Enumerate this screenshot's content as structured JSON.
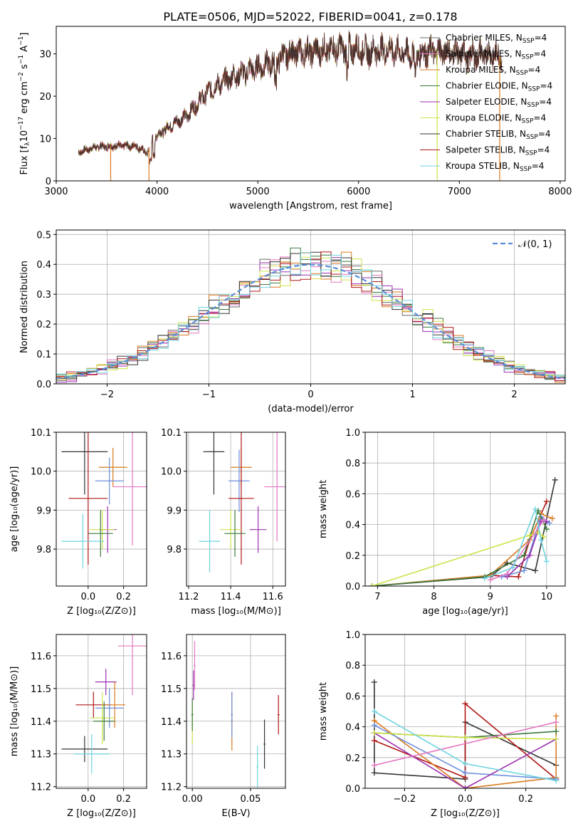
{
  "figure_title": "PLATE=0506, MJD=52022, FIBERID=0041, z=0.178",
  "series_colors": [
    "#6b6b6b",
    "#e377c2",
    "#d97a1f",
    "#3c7a3c",
    "#9b30b0",
    "#cfe34a",
    "#333333",
    "#b01818",
    "#6fd4e0"
  ],
  "chart_data": [
    {
      "id": "spectrum",
      "type": "line",
      "title": "PLATE=0506, MJD=52022, FIBERID=0041, z=0.178",
      "xlabel": "wavelength [Angstrom, rest frame]",
      "ylabel_pre": "Flux [f",
      "ylabel_sub": "λ",
      "ylabel_mid": "10",
      "ylabel_exp": "−17",
      "ylabel_post": " erg cm",
      "ylabel_exp2": "−2",
      "ylabel_post2": " s",
      "ylabel_exp3": "−1",
      "ylabel_post3": " A",
      "ylabel_exp4": "−1",
      "ylabel_end": "]",
      "xlim": [
        3000,
        8050
      ],
      "ylim": [
        0,
        36.5
      ],
      "xticks": [
        3000,
        4000,
        5000,
        6000,
        7000,
        8000
      ],
      "yticks": [
        0,
        10,
        20,
        30
      ],
      "grid": false,
      "legend_position": "top-right",
      "legend_sub": "SSP",
      "legend_suffix": "=4",
      "legend": [
        {
          "name": "Chabrier MILES, N",
          "color": "#6b6b6b"
        },
        {
          "name": "Salpeter MILES, N",
          "color": "#e377c2"
        },
        {
          "name": "Kroupa MILES, N",
          "color": "#d97a1f"
        },
        {
          "name": "Chabrier ELODIE, N",
          "color": "#3c7a3c"
        },
        {
          "name": "Salpeter ELODIE, N",
          "color": "#9b30b0"
        },
        {
          "name": "Kroupa ELODIE, N",
          "color": "#cfe34a"
        },
        {
          "name": "Chabrier STELIB, N",
          "color": "#333333"
        },
        {
          "name": "Salpeter STELIB, N",
          "color": "#b01818"
        },
        {
          "name": "Kroupa STELIB, N",
          "color": "#6fd4e0"
        }
      ],
      "continuum": [
        [
          3220,
          6.8
        ],
        [
          3400,
          8.0
        ],
        [
          3600,
          8.3
        ],
        [
          3800,
          8.2
        ],
        [
          3900,
          6.5
        ],
        [
          3960,
          10.0
        ],
        [
          4100,
          12.5
        ],
        [
          4300,
          15.5
        ],
        [
          4500,
          21.0
        ],
        [
          4700,
          24.0
        ],
        [
          4900,
          26.0
        ],
        [
          5100,
          27.5
        ],
        [
          5300,
          30.0
        ],
        [
          5500,
          30.5
        ],
        [
          5700,
          31.0
        ],
        [
          5900,
          31.5
        ],
        [
          6100,
          30.5
        ],
        [
          6300,
          31.0
        ],
        [
          6500,
          30.0
        ],
        [
          6700,
          30.5
        ],
        [
          6900,
          30.5
        ],
        [
          7100,
          29.5
        ],
        [
          7300,
          30.0
        ],
        [
          7420,
          29.5
        ]
      ],
      "dropouts": [
        {
          "x": 3540,
          "color": "#d97a1f",
          "start": 3560
        },
        {
          "x": 3920,
          "color": "#d97a1f",
          "start": 3920
        },
        {
          "x": 6780,
          "color": "#cfe34a",
          "end": 6780
        },
        {
          "x": 7400,
          "color": "#d97a1f",
          "end": 7400
        }
      ]
    },
    {
      "id": "residuals",
      "type": "line",
      "xlabel": "(data-model)/error",
      "ylabel": "Normed distribution",
      "xlim": [
        -2.5,
        2.5
      ],
      "ylim": [
        0,
        0.515
      ],
      "xticks": [
        -2,
        -1,
        0,
        1,
        2
      ],
      "yticks": [
        0.0,
        0.1,
        0.2,
        0.3,
        0.4,
        0.5
      ],
      "grid": true,
      "legend_position": "top-right",
      "reference": {
        "name": "𝒩(0, 1)",
        "mean": 0,
        "sigma": 1,
        "color": "#5b8dd6"
      },
      "bin_width": 0.1,
      "x_start": -2.5
    },
    {
      "id": "age-vs-Z",
      "type": "scatter",
      "xlabel": "Z [log₁₀(Z/Z⊙)]",
      "ylabel": "age  [log₁₀(age/yr)]",
      "xlim": [
        -0.18,
        0.33
      ],
      "ylim": [
        9.705,
        10.1
      ],
      "xticks": [
        0.0,
        0.2
      ],
      "yticks": [
        9.8,
        9.9,
        10.0,
        10.1
      ],
      "grid": true,
      "points": [
        {
          "x": -0.02,
          "y": 10.05,
          "xerr": 0.13,
          "yerr": 0.11,
          "color": "#333333"
        },
        {
          "x": 0.14,
          "y": 10.01,
          "xerr": 0.08,
          "yerr": 0.05,
          "color": "#d97a1f"
        },
        {
          "x": 0.25,
          "y": 9.96,
          "xerr": 0.11,
          "yerr": 0.15,
          "color": "#e377c2"
        },
        {
          "x": 0.12,
          "y": 9.975,
          "xerr": 0.08,
          "yerr": 0.06,
          "color": "#6b8fdc"
        },
        {
          "x": 0.0,
          "y": 9.93,
          "xerr": 0.11,
          "yerr": 0.17,
          "color": "#b01818"
        },
        {
          "x": 0.11,
          "y": 9.85,
          "xerr": 0.05,
          "yerr": 0.06,
          "color": "#9b30b0"
        },
        {
          "x": 0.08,
          "y": 9.85,
          "xerr": 0.07,
          "yerr": 0.05,
          "color": "#cfe34a"
        },
        {
          "x": 0.07,
          "y": 9.84,
          "xerr": 0.07,
          "yerr": 0.06,
          "color": "#3c7a3c"
        },
        {
          "x": -0.03,
          "y": 9.82,
          "xerr": 0.12,
          "yerr": 0.07,
          "color": "#6fd4e0"
        }
      ]
    },
    {
      "id": "age-vs-mass",
      "type": "scatter",
      "xlabel": "mass [log₁₀(M/M⊙)]",
      "xlim": [
        11.19,
        11.66
      ],
      "ylim": [
        9.705,
        10.1
      ],
      "xticks": [
        11.2,
        11.4,
        11.6
      ],
      "yticks": [
        9.8,
        9.9,
        10.0,
        10.1
      ],
      "grid": true,
      "points": [
        {
          "x": 11.32,
          "y": 10.05,
          "xerr": 0.05,
          "yerr": 0.11,
          "color": "#333333"
        },
        {
          "x": 11.45,
          "y": 10.01,
          "xerr": 0.05,
          "yerr": 0.05,
          "color": "#d97a1f"
        },
        {
          "x": 11.62,
          "y": 9.96,
          "xerr": 0.06,
          "yerr": 0.14,
          "color": "#e377c2"
        },
        {
          "x": 11.44,
          "y": 9.975,
          "xerr": 0.05,
          "yerr": 0.08,
          "color": "#6b8fdc"
        },
        {
          "x": 11.45,
          "y": 9.93,
          "xerr": 0.06,
          "yerr": 0.17,
          "color": "#b01818"
        },
        {
          "x": 11.53,
          "y": 9.85,
          "xerr": 0.04,
          "yerr": 0.06,
          "color": "#9b30b0"
        },
        {
          "x": 11.4,
          "y": 9.85,
          "xerr": 0.05,
          "yerr": 0.05,
          "color": "#cfe34a"
        },
        {
          "x": 11.42,
          "y": 9.84,
          "xerr": 0.05,
          "yerr": 0.06,
          "color": "#3c7a3c"
        },
        {
          "x": 11.3,
          "y": 9.82,
          "xerr": 0.05,
          "yerr": 0.08,
          "color": "#6fd4e0"
        }
      ]
    },
    {
      "id": "weight-vs-age",
      "type": "line",
      "xlabel": "age  [log₁₀(age/yr)]",
      "ylabel": "mass weight",
      "xlim": [
        6.78,
        10.33
      ],
      "ylim": [
        0,
        1.0
      ],
      "xticks": [
        7,
        8,
        9,
        10
      ],
      "yticks": [
        0.0,
        0.2,
        0.4,
        0.6,
        0.8,
        1.0
      ],
      "grid": true,
      "series": [
        {
          "color": "#333333",
          "x": [
            6.9,
            9.0,
            9.3,
            9.8,
            10.15
          ],
          "y": [
            0.0,
            0.06,
            0.15,
            0.1,
            0.69
          ]
        },
        {
          "color": "#b01818",
          "x": [
            9.0,
            9.5,
            9.7,
            10.0
          ],
          "y": [
            0.07,
            0.06,
            0.3,
            0.55
          ]
        },
        {
          "color": "#d97a1f",
          "x": [
            6.9,
            9.0,
            9.7,
            9.9,
            10.1
          ],
          "y": [
            0.0,
            0.07,
            0.3,
            0.47,
            0.44
          ]
        },
        {
          "color": "#6b8fdc",
          "x": [
            9.2,
            9.6,
            9.9,
            10.05
          ],
          "y": [
            0.06,
            0.1,
            0.45,
            0.41
          ]
        },
        {
          "color": "#3c7a3c",
          "x": [
            6.9,
            8.9,
            9.6,
            9.85,
            10.0
          ],
          "y": [
            0.0,
            0.06,
            0.2,
            0.49,
            0.37
          ]
        },
        {
          "color": "#9b30b0",
          "x": [
            9.3,
            9.7,
            9.9,
            10.0
          ],
          "y": [
            0.06,
            0.2,
            0.42,
            0.42
          ]
        },
        {
          "color": "#cfe34a",
          "x": [
            6.9,
            9.7,
            9.85,
            9.95
          ],
          "y": [
            0.0,
            0.33,
            0.35,
            0.32
          ]
        },
        {
          "color": "#e377c2",
          "x": [
            9.0,
            9.3,
            9.95
          ],
          "y": [
            0.04,
            0.08,
            0.43
          ]
        },
        {
          "color": "#6fd4e0",
          "x": [
            8.9,
            9.4,
            9.8,
            9.9,
            10.0
          ],
          "y": [
            0.05,
            0.12,
            0.5,
            0.3,
            0.16
          ]
        }
      ]
    },
    {
      "id": "mass-vs-Z",
      "type": "scatter",
      "xlabel": "Z [log₁₀(Z/Z⊙)]",
      "ylabel": "mass [log₁₀(M/M⊙)]",
      "xlim": [
        -0.18,
        0.33
      ],
      "ylim": [
        11.195,
        11.665
      ],
      "xticks": [
        0.0,
        0.2
      ],
      "yticks": [
        11.2,
        11.3,
        11.4,
        11.5,
        11.6
      ],
      "grid": true,
      "points": [
        {
          "x": 0.25,
          "y": 11.63,
          "xerr": 0.08,
          "yerr": 0.15,
          "color": "#e377c2"
        },
        {
          "x": 0.1,
          "y": 11.52,
          "xerr": 0.06,
          "yerr": 0.04,
          "color": "#9b30b0"
        },
        {
          "x": 0.03,
          "y": 11.45,
          "xerr": 0.1,
          "yerr": 0.04,
          "color": "#b01818"
        },
        {
          "x": 0.15,
          "y": 11.45,
          "xerr": 0.06,
          "yerr": 0.07,
          "color": "#d97a1f"
        },
        {
          "x": 0.12,
          "y": 11.44,
          "xerr": 0.08,
          "yerr": 0.06,
          "color": "#6b8fdc"
        },
        {
          "x": 0.08,
          "y": 11.41,
          "xerr": 0.07,
          "yerr": 0.08,
          "color": "#cfe34a"
        },
        {
          "x": 0.09,
          "y": 11.4,
          "xerr": 0.06,
          "yerr": 0.06,
          "color": "#3c7a3c"
        },
        {
          "x": -0.02,
          "y": 11.315,
          "xerr": 0.13,
          "yerr": 0.04,
          "color": "#333333"
        },
        {
          "x": 0.02,
          "y": 11.3,
          "xerr": 0.1,
          "yerr": 0.06,
          "color": "#6fd4e0"
        }
      ]
    },
    {
      "id": "mass-vs-EBV",
      "type": "scatter",
      "xlabel": "E(B-V)",
      "xlim": [
        -0.005,
        0.08
      ],
      "ylim": [
        11.195,
        11.665
      ],
      "xticks": [
        0.0,
        0.05
      ],
      "yticks": [
        11.2,
        11.3,
        11.4,
        11.5,
        11.6
      ],
      "grid": true,
      "points": [
        {
          "x": 0.002,
          "y": 11.57,
          "xerr": 0.0008,
          "yerr": 0.075,
          "color": "#e377c2"
        },
        {
          "x": 0.001,
          "y": 11.51,
          "xerr": 0.0008,
          "yerr": 0.045,
          "color": "#9b30b0"
        },
        {
          "x": 0.0,
          "y": 11.39,
          "xerr": 0.0008,
          "yerr": 0.06,
          "color": "#cfe34a"
        },
        {
          "x": 0.0,
          "y": 11.42,
          "xerr": 0.0008,
          "yerr": 0.05,
          "color": "#3c7a3c"
        },
        {
          "x": 0.034,
          "y": 11.4,
          "xerr": 0.0008,
          "yerr": 0.09,
          "color": "#d97a1f"
        },
        {
          "x": 0.034,
          "y": 11.42,
          "xerr": 0.0008,
          "yerr": 0.07,
          "color": "#6b8fdc"
        },
        {
          "x": 0.056,
          "y": 11.26,
          "xerr": 0.0008,
          "yerr": 0.065,
          "color": "#6fd4e0"
        },
        {
          "x": 0.062,
          "y": 11.33,
          "xerr": 0.0008,
          "yerr": 0.075,
          "color": "#333333"
        },
        {
          "x": 0.074,
          "y": 11.42,
          "xerr": 0.0008,
          "yerr": 0.06,
          "color": "#b01818"
        }
      ]
    },
    {
      "id": "weight-vs-Z",
      "type": "line",
      "xlabel": "Z [log₁₀(Z/Z⊙)]",
      "ylabel": "mass weight",
      "xlim": [
        -0.33,
        0.33
      ],
      "ylim": [
        0,
        1.0
      ],
      "xticks": [
        -0.2,
        0.0,
        0.2
      ],
      "yticks": [
        0.0,
        0.2,
        0.4,
        0.6,
        0.8,
        1.0
      ],
      "grid": true,
      "series": [
        {
          "color": "#333333",
          "x": [
            -0.3,
            -0.3,
            0.0,
            0.0,
            0.3
          ],
          "y": [
            0.69,
            0.1,
            0.06,
            0.43,
            0.15
          ]
        },
        {
          "color": "#b01818",
          "x": [
            -0.3,
            0.0,
            0.0,
            0.3
          ],
          "y": [
            0.31,
            0.07,
            0.55,
            0.06
          ]
        },
        {
          "color": "#d97a1f",
          "x": [
            -0.3,
            0.0,
            0.3,
            0.3
          ],
          "y": [
            0.44,
            0.0,
            0.07,
            0.47
          ]
        },
        {
          "color": "#6b8fdc",
          "x": [
            -0.3,
            0.0,
            0.3
          ],
          "y": [
            0.41,
            0.1,
            0.06
          ]
        },
        {
          "color": "#3c7a3c",
          "x": [
            -0.3,
            0.0,
            0.3
          ],
          "y": [
            0.36,
            0.33,
            0.37
          ]
        },
        {
          "color": "#9b30b0",
          "x": [
            -0.3,
            0.0,
            0.3
          ],
          "y": [
            0.36,
            0.0,
            0.32
          ]
        },
        {
          "color": "#cfe34a",
          "x": [
            -0.3,
            0.0,
            0.3
          ],
          "y": [
            0.36,
            0.33,
            0.32
          ]
        },
        {
          "color": "#e377c2",
          "x": [
            -0.3,
            0.3
          ],
          "y": [
            0.15,
            0.43
          ]
        },
        {
          "color": "#6fd4e0",
          "x": [
            -0.3,
            0.0,
            0.3
          ],
          "y": [
            0.5,
            0.16,
            0.05
          ]
        }
      ]
    }
  ]
}
